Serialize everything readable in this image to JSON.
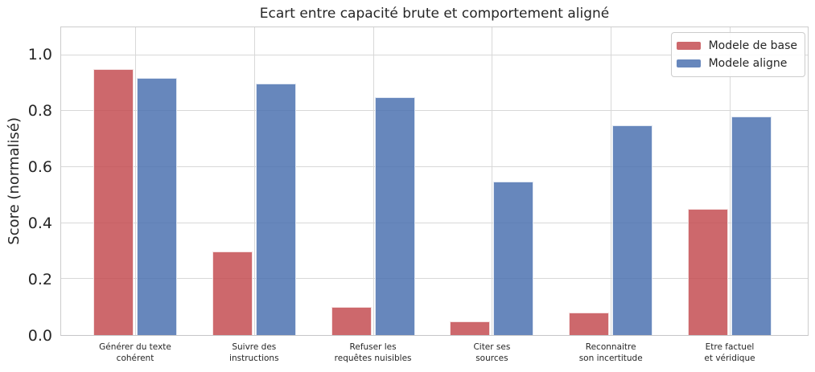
{
  "chart_data": {
    "type": "bar",
    "title": "Ecart entre capacité brute et comportement aligné",
    "xlabel": "",
    "ylabel": "Score (normalisé)",
    "categories": [
      "Générer du texte\ncohérent",
      "Suivre des\ninstructions",
      "Refuser les\nrequêtes nuisibles",
      "Citer ses\nsources",
      "Reconnaitre\nson incertitude",
      "Etre factuel\net véridique"
    ],
    "series": [
      {
        "name": "Modele de base",
        "color": "#c44e52",
        "values": [
          0.95,
          0.3,
          0.1,
          0.05,
          0.08,
          0.45
        ]
      },
      {
        "name": "Modele aligne",
        "color": "#4c72b0",
        "values": [
          0.92,
          0.9,
          0.85,
          0.55,
          0.75,
          0.78
        ]
      }
    ],
    "bar_alpha": 0.85,
    "ylim": [
      0,
      1.1
    ],
    "yticks": [
      0.0,
      0.2,
      0.4,
      0.6,
      0.8,
      1.0
    ],
    "grid": true,
    "legend_position": "upper right"
  }
}
